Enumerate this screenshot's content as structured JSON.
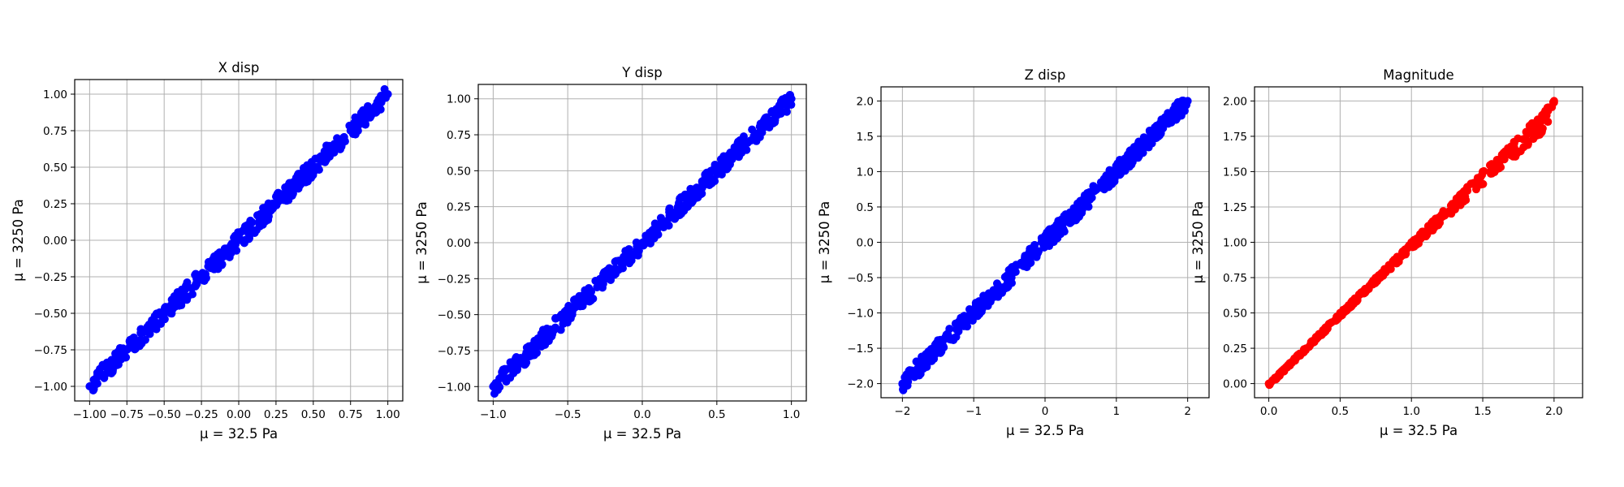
{
  "chart_data": [
    {
      "type": "scatter",
      "title": "X disp",
      "xlabel": "μ = 32.5 Pa",
      "ylabel": "μ = 3250 Pa",
      "xlim": [
        -1.1,
        1.1
      ],
      "ylim": [
        -1.1,
        1.1
      ],
      "xticks": [
        "-1.00",
        "-0.75",
        "-0.50",
        "-0.25",
        "0.00",
        "0.25",
        "0.50",
        "0.75",
        "1.00"
      ],
      "yticks": [
        "-1.00",
        "-0.75",
        "-0.50",
        "-0.25",
        "0.00",
        "0.25",
        "0.50",
        "0.75",
        "1.00"
      ],
      "grid": true,
      "color": "#0000ff",
      "series": [
        {
          "x": [
            -1.0,
            -0.75,
            -0.5,
            -0.25,
            0.0,
            0.25,
            0.5,
            0.75,
            1.0
          ],
          "y": [
            -1.0,
            -0.75,
            -0.5,
            -0.25,
            0.0,
            0.25,
            0.5,
            0.75,
            1.0
          ]
        }
      ]
    },
    {
      "type": "scatter",
      "title": "Y disp",
      "xlabel": "μ = 32.5 Pa",
      "ylabel": "μ = 3250 Pa",
      "xlim": [
        -1.1,
        1.1
      ],
      "ylim": [
        -1.1,
        1.1
      ],
      "xticks": [
        "-1.0",
        "-0.5",
        "0.0",
        "0.5",
        "1.0"
      ],
      "yticks": [
        "-1.00",
        "-0.75",
        "-0.50",
        "-0.25",
        "0.00",
        "0.25",
        "0.50",
        "0.75",
        "1.00"
      ],
      "grid": true,
      "color": "#0000ff",
      "series": [
        {
          "x": [
            -1.0,
            -0.5,
            0.0,
            0.5,
            1.0
          ],
          "y": [
            -1.0,
            -0.5,
            0.0,
            0.5,
            1.0
          ]
        }
      ]
    },
    {
      "type": "scatter",
      "title": "Z disp",
      "xlabel": "μ = 32.5 Pa",
      "ylabel": "μ = 3250 Pa",
      "xlim": [
        -2.3,
        2.3
      ],
      "ylim": [
        -2.2,
        2.2
      ],
      "xticks": [
        "-2",
        "-1",
        "0",
        "1",
        "2"
      ],
      "yticks": [
        "-2.0",
        "-1.5",
        "-1.0",
        "-0.5",
        "0.0",
        "0.5",
        "1.0",
        "1.5",
        "2.0"
      ],
      "grid": true,
      "color": "#0000ff",
      "series": [
        {
          "x": [
            -2.0,
            -1.0,
            0.0,
            1.0,
            2.0
          ],
          "y": [
            -2.0,
            -1.0,
            0.0,
            1.0,
            2.0
          ]
        }
      ]
    },
    {
      "type": "scatter",
      "title": "Magnitude",
      "xlabel": "μ = 32.5 Pa",
      "ylabel": "μ = 3250 Pa",
      "xlim": [
        -0.1,
        2.2
      ],
      "ylim": [
        -0.1,
        2.1
      ],
      "xticks": [
        "0.0",
        "0.5",
        "1.0",
        "1.5",
        "2.0"
      ],
      "yticks": [
        "0.00",
        "0.25",
        "0.50",
        "0.75",
        "1.00",
        "1.25",
        "1.50",
        "1.75",
        "2.00"
      ],
      "grid": true,
      "color": "#ff0000",
      "series": [
        {
          "x": [
            0.0,
            0.5,
            1.0,
            1.5,
            2.0
          ],
          "y": [
            0.0,
            0.5,
            1.0,
            1.5,
            2.0
          ]
        }
      ]
    }
  ]
}
